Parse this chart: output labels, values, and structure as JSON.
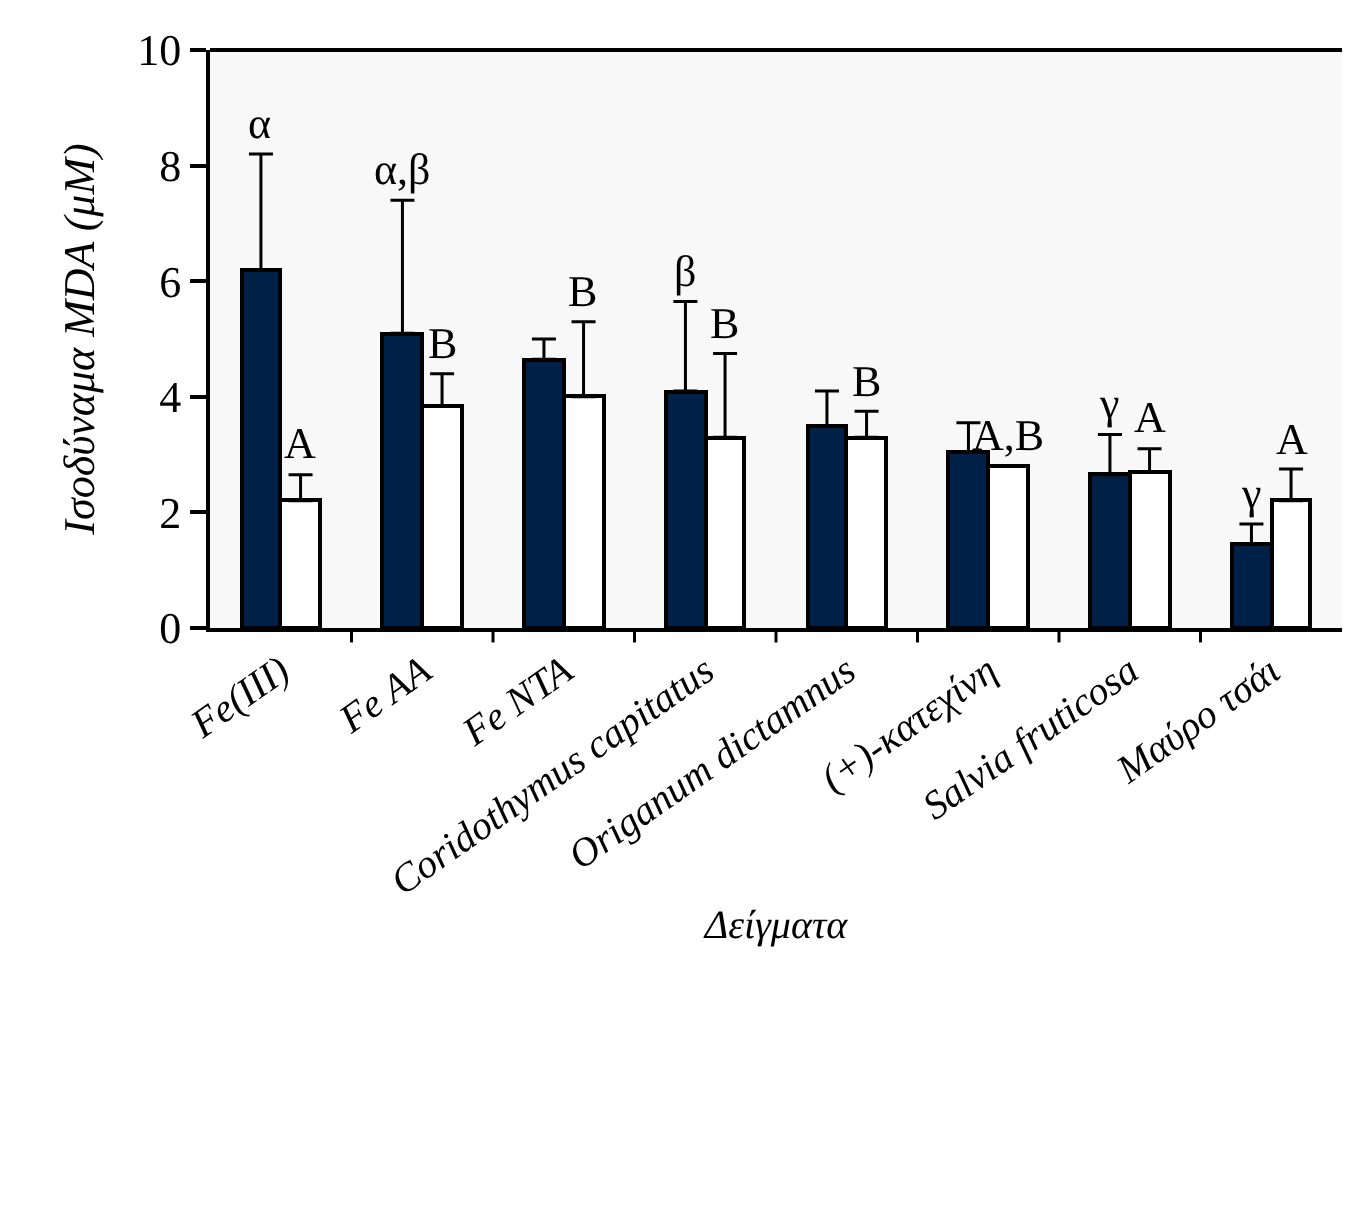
{
  "chart_data": {
    "type": "bar",
    "xlabel": "Δείγματα",
    "ylabel": "Ισοδύναμα MDA (μM)",
    "categories": [
      "Fe(III)",
      "Fe AA",
      "Fe NTA",
      "Coridothymus capitatus",
      "Origanum dictamnus",
      "(+)-κατεχίνη",
      "Salvia fruticosa",
      "Μαύρο τσάι"
    ],
    "series": [
      {
        "color": "#002147",
        "values": [
          6.2,
          5.1,
          4.65,
          4.1,
          3.5,
          3.05,
          2.65,
          1.45
        ],
        "errors": [
          [
            6.2,
            8.2
          ],
          [
            5.1,
            7.4
          ],
          [
            4.65,
            5.0
          ],
          [
            4.1,
            5.65
          ],
          [
            3.5,
            4.1
          ],
          [
            3.05,
            3.55
          ],
          [
            2.65,
            3.35
          ],
          [
            1.45,
            1.8
          ]
        ],
        "value_labels": [
          "α",
          "α,β",
          null,
          "β",
          null,
          null,
          "γ",
          "γ"
        ]
      },
      {
        "color": "#ffffff",
        "values": [
          2.2,
          3.85,
          4.0,
          3.3,
          3.3,
          2.8,
          2.7,
          2.2
        ],
        "errors": [
          [
            2.2,
            2.65
          ],
          [
            3.85,
            4.4
          ],
          [
            4.0,
            5.3
          ],
          [
            3.3,
            4.75
          ],
          [
            3.3,
            3.75
          ],
          null,
          [
            2.7,
            3.1
          ],
          [
            2.2,
            2.75
          ]
        ],
        "value_labels": [
          "A",
          "B",
          "B",
          "B",
          "B",
          "A,B",
          "A",
          "A"
        ]
      }
    ],
    "ylim": [
      0,
      10
    ],
    "yticks": [
      0,
      2,
      4,
      6,
      8,
      10
    ]
  }
}
